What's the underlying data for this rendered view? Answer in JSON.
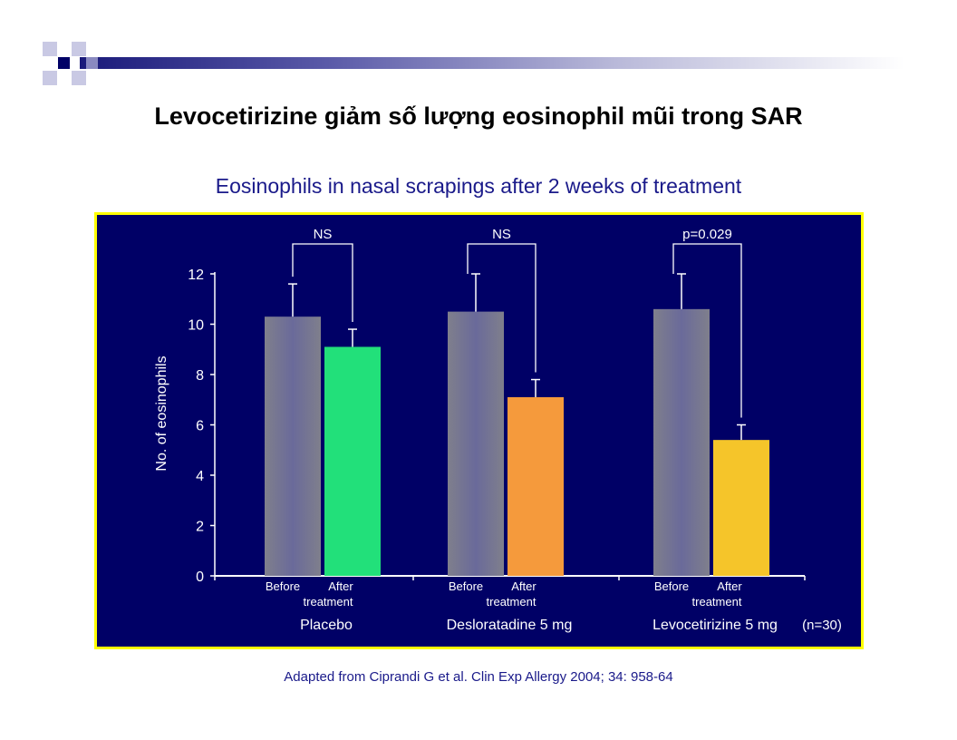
{
  "slide": {
    "title": "Levocetirizine giảm số lượng eosinophil mũi trong SAR",
    "citation": "Adapted from Ciprandi G et al. Clin Exp Allergy 2004; 34: 958-64"
  },
  "colors": {
    "chart_background": "#000066",
    "chart_border": "#ffff00",
    "before_bar": "#7f7f8c",
    "placebo_after": "#22e07a",
    "desloratadine_after": "#f59a3c",
    "levocetirizine_after": "#f5c52a"
  },
  "chart_data": {
    "type": "bar",
    "title": "Eosinophils in nasal scrapings after 2 weeks of treatment",
    "ylabel": "No. of eosinophils",
    "ylim": [
      0,
      12
    ],
    "yticks": [
      "0",
      "2",
      "4",
      "6",
      "8",
      "10",
      "12"
    ],
    "bar_labels": [
      "Before",
      "After"
    ],
    "bar_sublabel": "treatment",
    "sample_note": "(n=30)",
    "groups": [
      {
        "name": "Placebo",
        "before": 10.3,
        "before_error": 11.6,
        "after": 9.1,
        "after_error": 9.8,
        "significance": "NS",
        "after_color": "#22e07a"
      },
      {
        "name": "Desloratadine 5 mg",
        "before": 10.5,
        "before_error": 12.0,
        "after": 7.1,
        "after_error": 7.8,
        "significance": "NS",
        "after_color": "#f59a3c"
      },
      {
        "name": "Levocetirizine 5 mg",
        "before": 10.6,
        "before_error": 12.0,
        "after": 5.4,
        "after_error": 6.0,
        "significance": "p=0.029",
        "after_color": "#f5c52a"
      }
    ]
  }
}
